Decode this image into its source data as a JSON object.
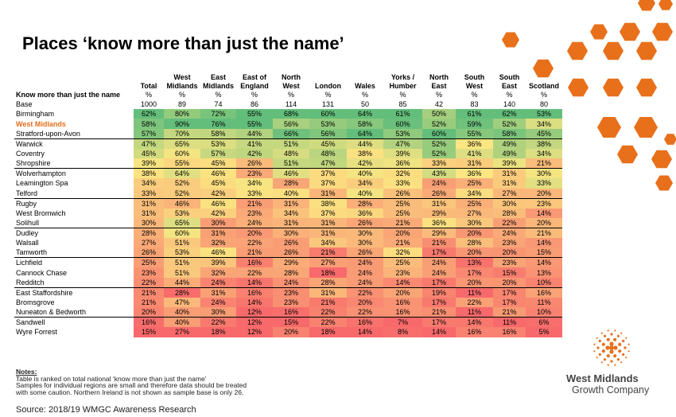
{
  "title": "Places ‘know more than just the name’",
  "colors": {
    "accent": "#e8701a",
    "highlight_text": "#e26e1a",
    "high": "#63be7b",
    "mid": "#fbe682",
    "low": "#f8696b"
  },
  "table": {
    "columns": [
      "Total",
      "West\nMidlands",
      "East\nMidlands",
      "East of\nEngland",
      "North\nWest",
      "London",
      "Wales",
      "Yorks /\nHumber",
      "North\nEast",
      "South\nWest",
      "South\nEast",
      "Scotland"
    ],
    "units_label": "Know more than just the name",
    "units": [
      "%",
      "%",
      "%",
      "%",
      "%",
      "%",
      "%",
      "%",
      "%",
      "%",
      "%",
      "%"
    ],
    "base_label": "Base",
    "base": [
      "1000",
      "89",
      "74",
      "86",
      "114",
      "131",
      "50",
      "85",
      "42",
      "83",
      "140",
      "80"
    ],
    "rows": [
      {
        "name": "Birmingham",
        "values": [
          62,
          80,
          72,
          55,
          68,
          60,
          64,
          61,
          50,
          61,
          62,
          53
        ],
        "sep": false,
        "highlight": false
      },
      {
        "name": "West Midlands",
        "values": [
          58,
          90,
          76,
          55,
          56,
          53,
          58,
          60,
          52,
          59,
          52,
          34
        ],
        "sep": false,
        "highlight": true
      },
      {
        "name": "Stratford-upon-Avon",
        "values": [
          57,
          70,
          58,
          44,
          66,
          56,
          64,
          53,
          60,
          55,
          58,
          45
        ],
        "sep": false,
        "highlight": false
      },
      {
        "name": "Warwick",
        "values": [
          47,
          65,
          53,
          41,
          51,
          45,
          44,
          47,
          52,
          36,
          49,
          38
        ],
        "sep": true,
        "highlight": false
      },
      {
        "name": "Coventry",
        "values": [
          45,
          60,
          57,
          42,
          48,
          48,
          38,
          39,
          52,
          41,
          49,
          34
        ],
        "sep": false,
        "highlight": false
      },
      {
        "name": "Shropshire",
        "values": [
          39,
          55,
          45,
          26,
          51,
          47,
          42,
          36,
          33,
          31,
          39,
          21
        ],
        "sep": false,
        "highlight": false
      },
      {
        "name": "Wolverhampton",
        "values": [
          38,
          64,
          46,
          23,
          46,
          37,
          40,
          32,
          43,
          36,
          31,
          30
        ],
        "sep": true,
        "highlight": false
      },
      {
        "name": "Leamington Spa",
        "values": [
          34,
          52,
          45,
          34,
          28,
          37,
          34,
          33,
          24,
          25,
          31,
          33
        ],
        "sep": false,
        "highlight": false
      },
      {
        "name": "Telford",
        "values": [
          33,
          52,
          42,
          33,
          40,
          31,
          40,
          26,
          26,
          34,
          27,
          20
        ],
        "sep": false,
        "highlight": false
      },
      {
        "name": "Rugby",
        "values": [
          31,
          46,
          46,
          21,
          31,
          38,
          28,
          25,
          31,
          25,
          30,
          23
        ],
        "sep": true,
        "highlight": false
      },
      {
        "name": "West Bromwich",
        "values": [
          31,
          53,
          42,
          23,
          34,
          37,
          36,
          25,
          29,
          27,
          28,
          14
        ],
        "sep": false,
        "highlight": false
      },
      {
        "name": "Solihull",
        "values": [
          30,
          65,
          30,
          24,
          31,
          31,
          26,
          21,
          36,
          30,
          22,
          20
        ],
        "sep": false,
        "highlight": false
      },
      {
        "name": "Dudley",
        "values": [
          28,
          60,
          31,
          20,
          30,
          31,
          30,
          20,
          29,
          20,
          24,
          21
        ],
        "sep": true,
        "highlight": false
      },
      {
        "name": "Walsall",
        "values": [
          27,
          51,
          32,
          22,
          26,
          34,
          30,
          21,
          21,
          28,
          23,
          14
        ],
        "sep": false,
        "highlight": false
      },
      {
        "name": "Tamworth",
        "values": [
          26,
          53,
          46,
          21,
          26,
          21,
          26,
          32,
          17,
          20,
          20,
          15
        ],
        "sep": false,
        "highlight": false
      },
      {
        "name": "Lichfield",
        "values": [
          25,
          51,
          39,
          16,
          29,
          27,
          24,
          25,
          24,
          13,
          23,
          14
        ],
        "sep": true,
        "highlight": false
      },
      {
        "name": "Cannock Chase",
        "values": [
          23,
          51,
          32,
          22,
          28,
          18,
          24,
          23,
          24,
          17,
          15,
          13
        ],
        "sep": false,
        "highlight": false
      },
      {
        "name": "Redditch",
        "values": [
          22,
          44,
          24,
          14,
          24,
          28,
          24,
          14,
          17,
          20,
          20,
          10
        ],
        "sep": false,
        "highlight": false
      },
      {
        "name": "East Staffordshire",
        "values": [
          21,
          28,
          31,
          16,
          23,
          31,
          22,
          20,
          19,
          11,
          17,
          16
        ],
        "sep": true,
        "highlight": false
      },
      {
        "name": "Bromsgrove",
        "values": [
          21,
          47,
          24,
          14,
          23,
          21,
          20,
          16,
          17,
          22,
          17,
          11
        ],
        "sep": false,
        "highlight": false
      },
      {
        "name": "Nuneaton & Bedworth",
        "values": [
          20,
          40,
          30,
          12,
          16,
          22,
          22,
          16,
          21,
          11,
          21,
          10
        ],
        "sep": false,
        "highlight": false
      },
      {
        "name": "Sandwell",
        "values": [
          16,
          40,
          22,
          12,
          15,
          22,
          16,
          7,
          17,
          14,
          11,
          6
        ],
        "sep": true,
        "highlight": false
      },
      {
        "name": "Wyre Forrest",
        "values": [
          15,
          27,
          18,
          12,
          20,
          18,
          14,
          8,
          14,
          16,
          16,
          5
        ],
        "sep": false,
        "highlight": false
      }
    ]
  },
  "notes": {
    "title": "Notes:",
    "lines": [
      "Table is ranked on total national ‘know more than just the name’",
      "Samples for individual regions are small and therefore data should be treated",
      "with some caution. Northern Ireland is not shown as sample base is only 26."
    ]
  },
  "source": "Source: 2018/19 WMGC Awareness Research",
  "logo": {
    "name": "West Midlands",
    "sub": "Growth Company",
    "icon": "sunburst-dots-icon"
  },
  "decoration": {
    "icon": "orange-hexagons-icon"
  }
}
